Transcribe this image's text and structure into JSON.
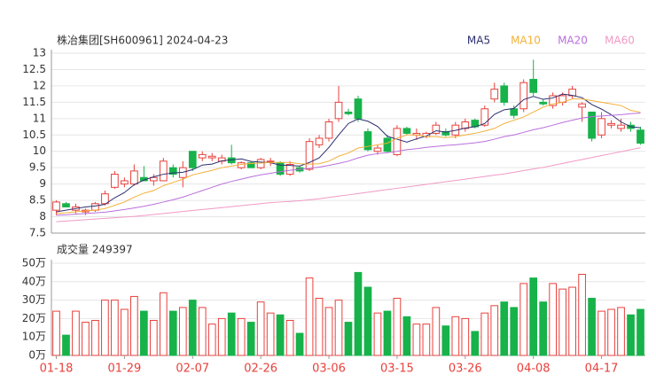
{
  "chart_data": [
    {
      "type": "candlestick",
      "title": "株冶集团[SH600961] 2024-04-23",
      "open": [
        8.2,
        8.4,
        8.2,
        8.15,
        8.2,
        8.4,
        8.9,
        9.0,
        9.0,
        9.2,
        9.1,
        9.1,
        9.5,
        9.2,
        10.0,
        9.8,
        9.8,
        9.7,
        9.8,
        9.5,
        9.65,
        9.5,
        9.7,
        9.65,
        9.3,
        9.5,
        9.45,
        10.2,
        10.4,
        11.0,
        11.2,
        11.6,
        10.6,
        10.0,
        10.4,
        9.9,
        10.7,
        10.5,
        10.45,
        10.55,
        10.6,
        10.5,
        10.7,
        10.95,
        10.8,
        11.6,
        12.0,
        11.3,
        11.3,
        12.2,
        11.5,
        11.4,
        11.5,
        11.7,
        11.35,
        11.2,
        10.5,
        10.8,
        10.7,
        10.8,
        10.65
      ],
      "high": [
        8.5,
        8.45,
        8.4,
        8.25,
        8.45,
        8.8,
        9.4,
        9.2,
        9.6,
        9.55,
        9.3,
        9.8,
        9.6,
        9.7,
        10.0,
        10.0,
        9.95,
        9.9,
        10.2,
        9.7,
        9.7,
        9.8,
        9.8,
        9.7,
        9.7,
        9.55,
        10.4,
        10.5,
        11.0,
        12.0,
        11.3,
        11.7,
        10.7,
        10.2,
        10.5,
        10.8,
        10.75,
        10.7,
        10.6,
        10.9,
        10.7,
        10.9,
        11.0,
        11.0,
        11.4,
        12.1,
        12.1,
        11.4,
        12.2,
        12.8,
        11.6,
        11.8,
        11.8,
        12.0,
        11.5,
        11.2,
        11.2,
        10.95,
        11.0,
        10.9,
        10.75
      ],
      "low": [
        8.05,
        8.3,
        8.1,
        8.05,
        8.15,
        8.35,
        8.85,
        8.9,
        8.95,
        9.1,
        8.95,
        9.1,
        9.2,
        8.9,
        9.4,
        9.7,
        9.7,
        9.6,
        9.6,
        9.45,
        9.5,
        9.45,
        9.55,
        9.25,
        9.25,
        9.35,
        9.4,
        10.1,
        10.3,
        10.9,
        11.1,
        10.9,
        10.0,
        9.9,
        9.95,
        9.85,
        10.5,
        10.35,
        10.4,
        10.5,
        10.45,
        10.4,
        10.6,
        10.7,
        10.75,
        11.5,
        11.4,
        11.0,
        11.2,
        11.7,
        11.4,
        11.3,
        11.4,
        11.6,
        10.9,
        10.3,
        10.4,
        10.7,
        10.6,
        10.6,
        10.2
      ],
      "close": [
        8.45,
        8.3,
        8.3,
        8.2,
        8.4,
        8.7,
        9.3,
        9.1,
        9.4,
        9.1,
        9.2,
        9.7,
        9.3,
        9.5,
        9.5,
        9.9,
        9.85,
        9.8,
        9.65,
        9.65,
        9.5,
        9.75,
        9.7,
        9.3,
        9.6,
        9.4,
        10.3,
        10.4,
        10.9,
        11.5,
        11.15,
        11.0,
        10.05,
        10.1,
        10.0,
        10.7,
        10.55,
        10.55,
        10.55,
        10.8,
        10.5,
        10.8,
        10.9,
        10.75,
        11.3,
        11.9,
        11.5,
        11.1,
        12.1,
        11.8,
        11.45,
        11.7,
        11.7,
        11.9,
        11.45,
        10.4,
        11.0,
        10.85,
        10.8,
        10.7,
        10.25
      ],
      "series": [
        {
          "name": "MA5",
          "color": "#2b2e6e",
          "values": [
            8.15,
            8.2,
            8.25,
            8.3,
            8.33,
            8.38,
            8.58,
            8.74,
            8.98,
            9.12,
            9.22,
            9.3,
            9.34,
            9.36,
            9.44,
            9.58,
            9.61,
            9.71,
            9.74,
            9.77,
            9.69,
            9.67,
            9.65,
            9.58,
            9.57,
            9.55,
            9.66,
            9.8,
            10.12,
            10.5,
            10.85,
            10.99,
            10.92,
            10.76,
            10.46,
            10.37,
            10.28,
            10.38,
            10.47,
            10.63,
            10.59,
            10.64,
            10.71,
            10.75,
            10.85,
            11.13,
            11.27,
            11.31,
            11.58,
            11.68,
            11.59,
            11.63,
            11.75,
            11.71,
            11.64,
            11.43,
            11.29,
            11.12,
            10.9,
            10.75,
            10.72
          ]
        },
        {
          "name": "MA10",
          "color": "#f2b13a",
          "values": [
            8.1,
            8.12,
            8.15,
            8.18,
            8.2,
            8.25,
            8.35,
            8.45,
            8.6,
            8.72,
            8.8,
            8.95,
            9.05,
            9.15,
            9.28,
            9.35,
            9.42,
            9.5,
            9.55,
            9.6,
            9.63,
            9.64,
            9.66,
            9.66,
            9.66,
            9.62,
            9.61,
            9.62,
            9.7,
            9.85,
            9.95,
            10.1,
            10.15,
            10.2,
            10.25,
            10.4,
            10.5,
            10.5,
            10.45,
            10.45,
            10.42,
            10.45,
            10.5,
            10.55,
            10.62,
            10.7,
            10.85,
            10.95,
            11.05,
            11.2,
            11.35,
            11.45,
            11.5,
            11.6,
            11.6,
            11.55,
            11.5,
            11.45,
            11.4,
            11.25,
            11.2
          ]
        },
        {
          "name": "MA20",
          "color": "#b96fdc",
          "values": [
            8.05,
            8.06,
            8.08,
            8.1,
            8.12,
            8.14,
            8.18,
            8.22,
            8.27,
            8.32,
            8.38,
            8.45,
            8.52,
            8.6,
            8.7,
            8.8,
            8.9,
            9.0,
            9.08,
            9.15,
            9.22,
            9.28,
            9.33,
            9.38,
            9.42,
            9.45,
            9.48,
            9.52,
            9.57,
            9.63,
            9.7,
            9.8,
            9.88,
            9.93,
            9.96,
            10.0,
            10.05,
            10.08,
            10.12,
            10.15,
            10.18,
            10.2,
            10.23,
            10.26,
            10.3,
            10.37,
            10.45,
            10.5,
            10.58,
            10.66,
            10.72,
            10.8,
            10.88,
            10.95,
            11.02,
            11.06,
            11.08,
            11.1,
            11.12,
            11.15,
            11.17
          ]
        },
        {
          "name": "MA60",
          "color": "#f09ac6",
          "values": [
            7.85,
            7.87,
            7.89,
            7.91,
            7.93,
            7.95,
            7.97,
            7.99,
            8.01,
            8.04,
            8.07,
            8.1,
            8.13,
            8.16,
            8.19,
            8.22,
            8.25,
            8.28,
            8.31,
            8.34,
            8.37,
            8.4,
            8.43,
            8.45,
            8.47,
            8.49,
            8.52,
            8.55,
            8.59,
            8.63,
            8.67,
            8.71,
            8.75,
            8.79,
            8.83,
            8.87,
            8.91,
            8.95,
            8.99,
            9.03,
            9.07,
            9.11,
            9.15,
            9.19,
            9.23,
            9.27,
            9.31,
            9.36,
            9.41,
            9.46,
            9.51,
            9.57,
            9.63,
            9.69,
            9.75,
            9.81,
            9.87,
            9.93,
            9.99,
            10.05,
            10.11
          ]
        }
      ],
      "up_color": "#e8413c",
      "down_color": "#17b24a",
      "ylim": [
        7.5,
        13
      ],
      "yticks": [
        7.5,
        8,
        8.5,
        9,
        9.5,
        10,
        10.5,
        11,
        11.5,
        12,
        12.5,
        13
      ],
      "grid": true
    },
    {
      "type": "bar",
      "title": "成交量 249397",
      "categories": [
        "01-18",
        null,
        null,
        null,
        null,
        null,
        null,
        "01-29",
        null,
        null,
        null,
        null,
        null,
        null,
        "02-07",
        null,
        null,
        null,
        null,
        null,
        null,
        "02-26",
        null,
        null,
        null,
        null,
        null,
        null,
        "03-06",
        null,
        null,
        null,
        null,
        null,
        null,
        "03-15",
        null,
        null,
        null,
        null,
        null,
        null,
        "03-26",
        null,
        null,
        null,
        null,
        null,
        null,
        "04-08",
        null,
        null,
        null,
        null,
        null,
        null,
        "04-17",
        null,
        null,
        null,
        null
      ],
      "values": [
        24,
        11,
        24,
        18,
        19,
        30,
        30,
        25,
        32,
        24,
        19,
        34,
        24,
        26,
        30,
        26,
        17,
        20,
        23,
        20,
        18,
        29,
        23,
        22,
        19,
        12,
        42,
        31,
        26,
        30,
        18,
        45,
        37,
        23,
        24,
        31,
        21,
        17,
        17,
        26,
        16,
        21,
        20,
        13,
        23,
        27,
        29,
        26,
        39,
        42,
        29,
        39,
        36,
        37,
        44,
        31,
        24,
        25,
        26,
        22,
        25
      ],
      "ylim": [
        0,
        50
      ],
      "yticks": [
        {
          "value": 0,
          "label": "0万"
        },
        {
          "value": 10,
          "label": "10万"
        },
        {
          "value": 20,
          "label": "20万"
        },
        {
          "value": 30,
          "label": "30万"
        },
        {
          "value": 40,
          "label": "40万"
        },
        {
          "value": 50,
          "label": "50万"
        }
      ],
      "grid": true
    }
  ]
}
